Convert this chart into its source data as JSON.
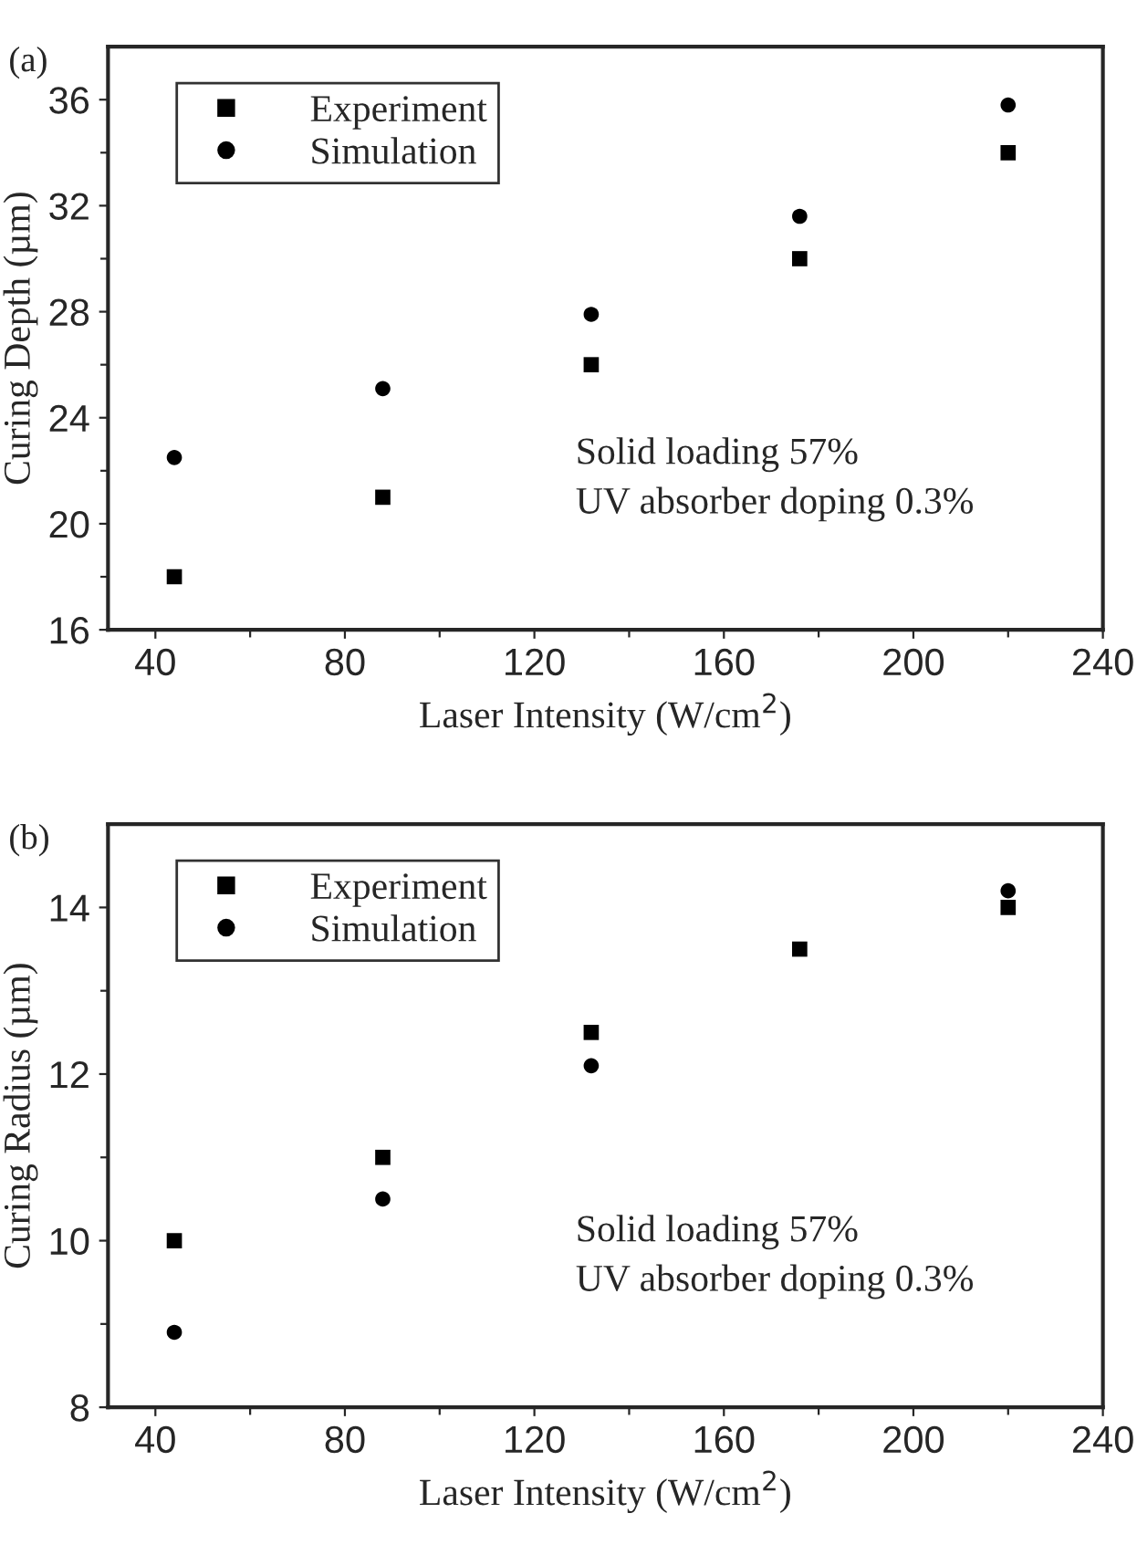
{
  "chart_data": [
    {
      "type": "scatter",
      "xlabel": "Laser Intensity (W/cm$^{2}$)",
      "ylabel": "Curing Depth (µm)",
      "annotations": [
        "(a)",
        "Solid loading 57%",
        "UV absorber doping 0.3%"
      ],
      "x": [
        44,
        88,
        132,
        176,
        220
      ],
      "series": [
        {
          "name": "Experiment",
          "color": "#000000",
          "marker": "square",
          "values": [
            18,
            21,
            26,
            30,
            34
          ]
        },
        {
          "name": "Simulation",
          "color": "#000000",
          "marker": "circle",
          "values": [
            22.5,
            25.1,
            27.9,
            31.6,
            35.8
          ]
        }
      ],
      "xlim": [
        30,
        240
      ],
      "xticks": [
        40,
        {
          "value": 60,
          "label": null
        },
        80,
        {
          "value": 100,
          "label": null
        },
        120,
        {
          "value": 140,
          "label": null
        },
        160,
        {
          "value": 180,
          "label": null
        },
        200,
        {
          "value": 220,
          "label": null
        },
        240
      ],
      "ylim": [
        16,
        38
      ],
      "yticks": [
        16,
        {
          "value": 18,
          "label": null
        },
        20,
        {
          "value": 22,
          "label": null
        },
        24,
        {
          "value": 26,
          "label": null
        },
        28,
        {
          "value": 30,
          "label": null
        },
        32,
        {
          "value": 34,
          "label": null
        },
        36
      ],
      "grid": false,
      "legend": "top left"
    },
    {
      "type": "scatter",
      "xlabel": "Laser Intensity (W/cm$^{2}$)",
      "ylabel": "Curing Radius (µm)",
      "annotations": [
        "(b)",
        "Solid loading 57%",
        "UV absorber doping 0.3%"
      ],
      "x": [
        44,
        88,
        132,
        176,
        220
      ],
      "series": [
        {
          "name": "Experiment",
          "color": "#000000",
          "marker": "square",
          "values": [
            10,
            11,
            12.5,
            13.5,
            14
          ]
        },
        {
          "name": "Simulation",
          "color": "#000000",
          "marker": "circle",
          "values": [
            8.9,
            10.5,
            12.1,
            null,
            14.2
          ]
        }
      ],
      "xlim": [
        30,
        240
      ],
      "xticks": [
        40,
        {
          "value": 60,
          "label": null
        },
        80,
        {
          "value": 100,
          "label": null
        },
        120,
        {
          "value": 140,
          "label": null
        },
        160,
        {
          "value": 180,
          "label": null
        },
        200,
        {
          "value": 220,
          "label": null
        },
        240
      ],
      "ylim": [
        8,
        15
      ],
      "yticks": [
        8,
        {
          "value": 9,
          "label": null
        },
        10,
        {
          "value": 11,
          "label": null
        },
        12,
        {
          "value": 13,
          "label": null
        },
        14
      ],
      "grid": false,
      "legend": "top left"
    }
  ]
}
